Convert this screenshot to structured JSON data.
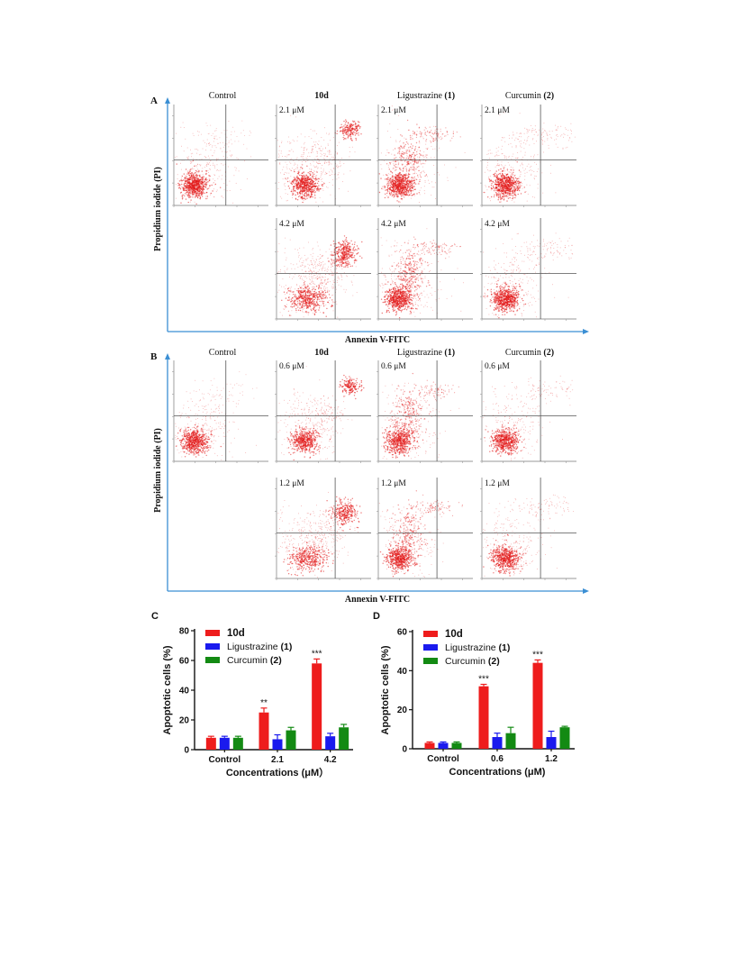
{
  "figure": {
    "panel_a": {
      "letter": "A",
      "col_labels": [
        {
          "name": "Control",
          "num": ""
        },
        {
          "name": "10d",
          "num": ""
        },
        {
          "name": "Ligustrazine ",
          "num": "(1)"
        },
        {
          "name": "Curcumin ",
          "num": "(2)"
        }
      ],
      "conc_top": "2.1 μM",
      "conc_bottom": "4.2 μM",
      "y_axis": "Propidium iodide (PI)",
      "x_axis": "Annexin V-FITC"
    },
    "panel_b": {
      "letter": "B",
      "col_labels": [
        {
          "name": "Control",
          "num": ""
        },
        {
          "name": "10d",
          "num": ""
        },
        {
          "name": "Ligustrazine ",
          "num": "(1)"
        },
        {
          "name": "Curcumin ",
          "num": "(2)"
        }
      ],
      "conc_top": "0.6 μM",
      "conc_bottom": "1.2 μM",
      "y_axis": "Propidium iodide (PI)",
      "x_axis": "Annexin V-FITC"
    }
  },
  "colors": {
    "red": "#ee1c1c",
    "blue": "#1a1aee",
    "green": "#138a13",
    "axis_blue": "#3b8fd4",
    "dot_red": "#e21b1b",
    "quad_line": "#555555"
  },
  "chart_data": [
    {
      "type": "bar",
      "panel": "C",
      "categories": [
        "Control",
        "2.1",
        "4.2"
      ],
      "series": [
        {
          "name": "10d",
          "values": [
            8,
            25,
            58
          ],
          "errors": [
            1,
            3,
            3
          ]
        },
        {
          "name": "Ligustrazine ",
          "name_num": "(1)",
          "values": [
            8,
            7,
            9
          ],
          "errors": [
            1,
            3,
            2
          ]
        },
        {
          "name": "Curcumin ",
          "name_num": "(2)",
          "values": [
            8,
            13,
            15
          ],
          "errors": [
            1,
            2,
            2
          ]
        }
      ],
      "significance": [
        "",
        "**",
        "***"
      ],
      "xlabel": "Concentrations (μM）",
      "ylabel": "Apoptotic cells (%)",
      "ylim": [
        0,
        80
      ],
      "yticks": [
        "0",
        "20",
        "40",
        "60",
        "80"
      ],
      "legend": "top-left"
    },
    {
      "type": "bar",
      "panel": "D",
      "categories": [
        "Control",
        "0.6",
        "1.2"
      ],
      "series": [
        {
          "name": "10d",
          "values": [
            3,
            32,
            44
          ],
          "errors": [
            0.5,
            1,
            1.5
          ]
        },
        {
          "name": "Ligustrazine ",
          "name_num": "(1)",
          "values": [
            3,
            6,
            6
          ],
          "errors": [
            0.5,
            2,
            3
          ]
        },
        {
          "name": "Curcumin ",
          "name_num": "(2)",
          "values": [
            3,
            8,
            11
          ],
          "errors": [
            0.5,
            3,
            0.5
          ]
        }
      ],
      "significance": [
        "",
        "***",
        "***"
      ],
      "xlabel": "Concentrations (μM)",
      "ylabel": "Apoptotic cells (%)",
      "ylim": [
        0,
        60
      ],
      "yticks": [
        "0",
        "20",
        "40",
        "60"
      ],
      "legend": "top-left"
    }
  ]
}
